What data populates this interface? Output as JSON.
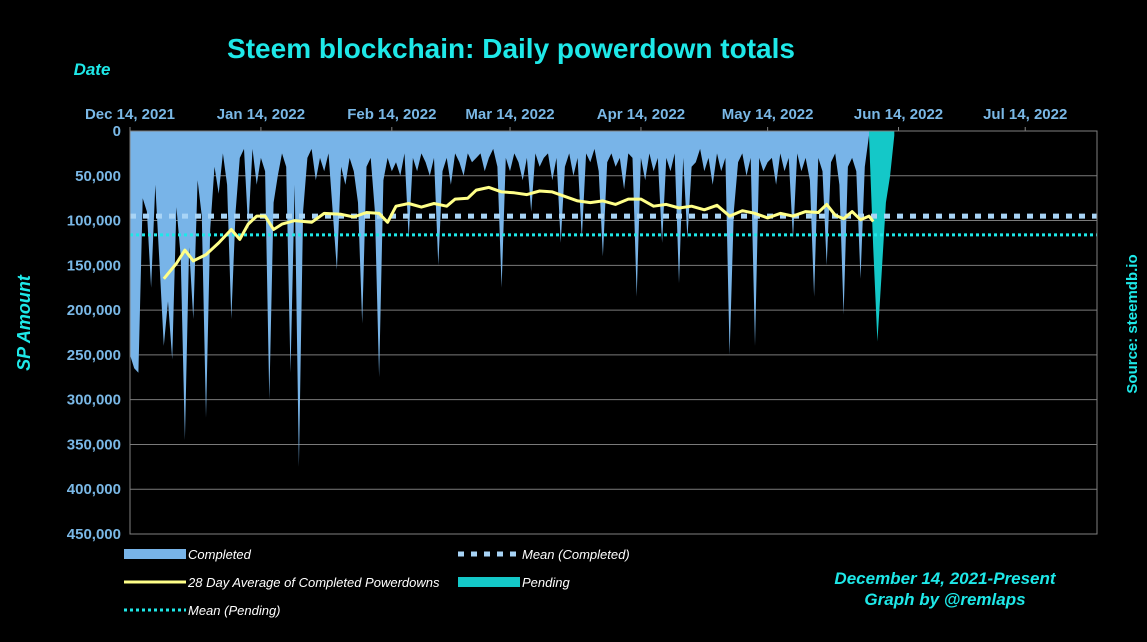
{
  "chart_data": {
    "type": "area",
    "title": "Steem blockchain: Daily powerdown totals",
    "xlabel": "Date",
    "ylabel": "SP Amount",
    "source": "Source: steemdb.io",
    "footer_line1": "December 14, 2021-Present",
    "footer_line2": "Graph by @remlaps",
    "y_axis": {
      "inverted": true,
      "ylim": [
        0,
        450000
      ],
      "ticks": [
        0,
        50000,
        100000,
        150000,
        200000,
        250000,
        300000,
        350000,
        400000,
        450000
      ],
      "tick_labels": [
        "0",
        "50,000",
        "100,000",
        "150,000",
        "200,000",
        "250,000",
        "300,000",
        "350,000",
        "400,000",
        "450,000"
      ]
    },
    "x_axis": {
      "start": "2021-12-14",
      "end": "2022-07-31",
      "position": "top",
      "ticks": [
        "2021-12-14",
        "2022-01-14",
        "2022-02-14",
        "2022-03-14",
        "2022-04-14",
        "2022-05-14",
        "2022-06-14",
        "2022-07-14"
      ],
      "tick_labels": [
        "Dec 14, 2021",
        "Jan 14, 2022",
        "Feb 14, 2022",
        "Mar 14, 2022",
        "Apr 14, 2022",
        "May 14, 2022",
        "Jun 14, 2022",
        "Jul 14, 2022"
      ]
    },
    "legend": {
      "placement": "bottom",
      "entries": [
        {
          "label": "Completed",
          "style": "area",
          "color": "#78b4e8"
        },
        {
          "label": "Mean (Completed)",
          "style": "dash",
          "color": "#a8d4f6"
        },
        {
          "label": "28 Day Average of Completed Powerdowns",
          "style": "line",
          "color": "#ffff88"
        },
        {
          "label": "Pending",
          "style": "area",
          "color": "#14c8c8"
        },
        {
          "label": "Mean (Pending)",
          "style": "dot",
          "color": "#1ee8e8"
        }
      ]
    },
    "grid": true,
    "colors": {
      "background": "#000000",
      "completed": "#78b4e8",
      "pending": "#14c8c8",
      "average": "#ffff88",
      "mean_completed": "#a8d4f6",
      "mean_pending": "#1ee8e8",
      "title": "#1ee8e8",
      "ticks": "#7ab8e6"
    },
    "series": [
      {
        "name": "Completed",
        "type": "area",
        "points": [
          [
            "2021-12-14",
            250000
          ],
          [
            "2021-12-15",
            265000
          ],
          [
            "2021-12-16",
            270000
          ],
          [
            "2021-12-17",
            75000
          ],
          [
            "2021-12-18",
            90000
          ],
          [
            "2021-12-19",
            175000
          ],
          [
            "2021-12-20",
            60000
          ],
          [
            "2021-12-21",
            150000
          ],
          [
            "2021-12-22",
            240000
          ],
          [
            "2021-12-23",
            190000
          ],
          [
            "2021-12-24",
            255000
          ],
          [
            "2021-12-25",
            85000
          ],
          [
            "2021-12-26",
            140000
          ],
          [
            "2021-12-27",
            345000
          ],
          [
            "2021-12-28",
            130000
          ],
          [
            "2021-12-29",
            210000
          ],
          [
            "2021-12-30",
            55000
          ],
          [
            "2021-12-31",
            95000
          ],
          [
            "2022-01-01",
            320000
          ],
          [
            "2022-01-02",
            110000
          ],
          [
            "2022-01-03",
            40000
          ],
          [
            "2022-01-04",
            70000
          ],
          [
            "2022-01-05",
            25000
          ],
          [
            "2022-01-06",
            60000
          ],
          [
            "2022-01-07",
            210000
          ],
          [
            "2022-01-08",
            90000
          ],
          [
            "2022-01-09",
            30000
          ],
          [
            "2022-01-10",
            20000
          ],
          [
            "2022-01-11",
            110000
          ],
          [
            "2022-01-12",
            20000
          ],
          [
            "2022-01-13",
            60000
          ],
          [
            "2022-01-14",
            30000
          ],
          [
            "2022-01-15",
            45000
          ],
          [
            "2022-01-16",
            300000
          ],
          [
            "2022-01-17",
            80000
          ],
          [
            "2022-01-18",
            50000
          ],
          [
            "2022-01-19",
            25000
          ],
          [
            "2022-01-20",
            40000
          ],
          [
            "2022-01-21",
            270000
          ],
          [
            "2022-01-22",
            60000
          ],
          [
            "2022-01-23",
            375000
          ],
          [
            "2022-01-24",
            90000
          ],
          [
            "2022-01-25",
            30000
          ],
          [
            "2022-01-26",
            20000
          ],
          [
            "2022-01-27",
            55000
          ],
          [
            "2022-01-28",
            30000
          ],
          [
            "2022-01-29",
            45000
          ],
          [
            "2022-01-30",
            25000
          ],
          [
            "2022-01-31",
            90000
          ],
          [
            "2022-02-01",
            155000
          ],
          [
            "2022-02-02",
            40000
          ],
          [
            "2022-02-03",
            60000
          ],
          [
            "2022-02-04",
            30000
          ],
          [
            "2022-02-05",
            45000
          ],
          [
            "2022-02-06",
            80000
          ],
          [
            "2022-02-07",
            215000
          ],
          [
            "2022-02-08",
            40000
          ],
          [
            "2022-02-09",
            30000
          ],
          [
            "2022-02-10",
            90000
          ],
          [
            "2022-02-11",
            275000
          ],
          [
            "2022-02-12",
            55000
          ],
          [
            "2022-02-13",
            30000
          ],
          [
            "2022-02-14",
            45000
          ],
          [
            "2022-02-15",
            35000
          ],
          [
            "2022-02-16",
            50000
          ],
          [
            "2022-02-17",
            25000
          ],
          [
            "2022-02-18",
            120000
          ],
          [
            "2022-02-19",
            30000
          ],
          [
            "2022-02-20",
            45000
          ],
          [
            "2022-02-21",
            25000
          ],
          [
            "2022-02-22",
            35000
          ],
          [
            "2022-02-23",
            50000
          ],
          [
            "2022-02-24",
            30000
          ],
          [
            "2022-02-25",
            150000
          ],
          [
            "2022-02-26",
            45000
          ],
          [
            "2022-02-27",
            30000
          ],
          [
            "2022-02-28",
            60000
          ],
          [
            "2022-03-01",
            25000
          ],
          [
            "2022-03-02",
            35000
          ],
          [
            "2022-03-03",
            50000
          ],
          [
            "2022-03-04",
            25000
          ],
          [
            "2022-03-05",
            35000
          ],
          [
            "2022-03-06",
            30000
          ],
          [
            "2022-03-07",
            25000
          ],
          [
            "2022-03-08",
            45000
          ],
          [
            "2022-03-09",
            30000
          ],
          [
            "2022-03-10",
            20000
          ],
          [
            "2022-03-11",
            40000
          ],
          [
            "2022-03-12",
            175000
          ],
          [
            "2022-03-13",
            30000
          ],
          [
            "2022-03-14",
            45000
          ],
          [
            "2022-03-15",
            25000
          ],
          [
            "2022-03-16",
            35000
          ],
          [
            "2022-03-17",
            55000
          ],
          [
            "2022-03-18",
            30000
          ],
          [
            "2022-03-19",
            90000
          ],
          [
            "2022-03-20",
            25000
          ],
          [
            "2022-03-21",
            40000
          ],
          [
            "2022-03-22",
            30000
          ],
          [
            "2022-03-23",
            25000
          ],
          [
            "2022-03-24",
            55000
          ],
          [
            "2022-03-25",
            30000
          ],
          [
            "2022-03-26",
            125000
          ],
          [
            "2022-03-27",
            40000
          ],
          [
            "2022-03-28",
            25000
          ],
          [
            "2022-03-29",
            50000
          ],
          [
            "2022-03-30",
            30000
          ],
          [
            "2022-03-31",
            120000
          ],
          [
            "2022-04-01",
            25000
          ],
          [
            "2022-04-02",
            35000
          ],
          [
            "2022-04-03",
            20000
          ],
          [
            "2022-04-04",
            45000
          ],
          [
            "2022-04-05",
            140000
          ],
          [
            "2022-04-06",
            35000
          ],
          [
            "2022-04-07",
            25000
          ],
          [
            "2022-04-08",
            40000
          ],
          [
            "2022-04-09",
            30000
          ],
          [
            "2022-04-10",
            65000
          ],
          [
            "2022-04-11",
            25000
          ],
          [
            "2022-04-12",
            30000
          ],
          [
            "2022-04-13",
            185000
          ],
          [
            "2022-04-14",
            30000
          ],
          [
            "2022-04-15",
            55000
          ],
          [
            "2022-04-16",
            25000
          ],
          [
            "2022-04-17",
            45000
          ],
          [
            "2022-04-18",
            30000
          ],
          [
            "2022-04-19",
            125000
          ],
          [
            "2022-04-20",
            30000
          ],
          [
            "2022-04-21",
            45000
          ],
          [
            "2022-04-22",
            25000
          ],
          [
            "2022-04-23",
            170000
          ],
          [
            "2022-04-24",
            30000
          ],
          [
            "2022-04-25",
            120000
          ],
          [
            "2022-04-26",
            40000
          ],
          [
            "2022-04-27",
            35000
          ],
          [
            "2022-04-28",
            20000
          ],
          [
            "2022-04-29",
            45000
          ],
          [
            "2022-04-30",
            30000
          ],
          [
            "2022-05-01",
            60000
          ],
          [
            "2022-05-02",
            25000
          ],
          [
            "2022-05-03",
            45000
          ],
          [
            "2022-05-04",
            30000
          ],
          [
            "2022-05-05",
            250000
          ],
          [
            "2022-05-06",
            90000
          ],
          [
            "2022-05-07",
            35000
          ],
          [
            "2022-05-08",
            25000
          ],
          [
            "2022-05-09",
            50000
          ],
          [
            "2022-05-10",
            30000
          ],
          [
            "2022-05-11",
            240000
          ],
          [
            "2022-05-12",
            30000
          ],
          [
            "2022-05-13",
            45000
          ],
          [
            "2022-05-14",
            35000
          ],
          [
            "2022-05-15",
            30000
          ],
          [
            "2022-05-16",
            60000
          ],
          [
            "2022-05-17",
            25000
          ],
          [
            "2022-05-18",
            45000
          ],
          [
            "2022-05-19",
            30000
          ],
          [
            "2022-05-20",
            120000
          ],
          [
            "2022-05-21",
            25000
          ],
          [
            "2022-05-22",
            45000
          ],
          [
            "2022-05-23",
            30000
          ],
          [
            "2022-05-24",
            55000
          ],
          [
            "2022-05-25",
            185000
          ],
          [
            "2022-05-26",
            30000
          ],
          [
            "2022-05-27",
            45000
          ],
          [
            "2022-05-28",
            150000
          ],
          [
            "2022-05-29",
            35000
          ],
          [
            "2022-05-30",
            25000
          ],
          [
            "2022-05-31",
            60000
          ],
          [
            "2022-06-01",
            205000
          ],
          [
            "2022-06-02",
            40000
          ],
          [
            "2022-06-03",
            30000
          ],
          [
            "2022-06-04",
            45000
          ],
          [
            "2022-06-05",
            165000
          ],
          [
            "2022-06-06",
            40000
          ],
          [
            "2022-06-07",
            5000
          ]
        ]
      },
      {
        "name": "Pending",
        "type": "area",
        "points": [
          [
            "2022-06-07",
            5000
          ],
          [
            "2022-06-08",
            130000
          ],
          [
            "2022-06-09",
            235000
          ],
          [
            "2022-06-10",
            160000
          ],
          [
            "2022-06-11",
            80000
          ],
          [
            "2022-06-12",
            50000
          ],
          [
            "2022-06-13",
            5000
          ]
        ]
      },
      {
        "name": "28 Day Average of Completed Powerdowns",
        "type": "line",
        "points": [
          [
            "2021-12-22",
            165000
          ],
          [
            "2021-12-25",
            148000
          ],
          [
            "2021-12-27",
            133000
          ],
          [
            "2021-12-29",
            145000
          ],
          [
            "2022-01-01",
            138000
          ],
          [
            "2022-01-04",
            125000
          ],
          [
            "2022-01-07",
            110000
          ],
          [
            "2022-01-09",
            121000
          ],
          [
            "2022-01-11",
            104000
          ],
          [
            "2022-01-13",
            95000
          ],
          [
            "2022-01-15",
            95000
          ],
          [
            "2022-01-17",
            110000
          ],
          [
            "2022-01-19",
            104000
          ],
          [
            "2022-01-22",
            100000
          ],
          [
            "2022-01-26",
            102000
          ],
          [
            "2022-01-29",
            92000
          ],
          [
            "2022-02-02",
            93000
          ],
          [
            "2022-02-05",
            96000
          ],
          [
            "2022-02-08",
            91000
          ],
          [
            "2022-02-11",
            92000
          ],
          [
            "2022-02-13",
            102000
          ],
          [
            "2022-02-15",
            84000
          ],
          [
            "2022-02-18",
            81000
          ],
          [
            "2022-02-21",
            85000
          ],
          [
            "2022-02-24",
            81000
          ],
          [
            "2022-02-27",
            84000
          ],
          [
            "2022-03-01",
            76000
          ],
          [
            "2022-03-04",
            75000
          ],
          [
            "2022-03-06",
            66000
          ],
          [
            "2022-03-09",
            63000
          ],
          [
            "2022-03-12",
            68000
          ],
          [
            "2022-03-15",
            69000
          ],
          [
            "2022-03-18",
            71000
          ],
          [
            "2022-03-21",
            67000
          ],
          [
            "2022-03-24",
            68000
          ],
          [
            "2022-03-27",
            73000
          ],
          [
            "2022-03-30",
            78000
          ],
          [
            "2022-04-02",
            80000
          ],
          [
            "2022-04-05",
            78000
          ],
          [
            "2022-04-08",
            82000
          ],
          [
            "2022-04-11",
            76000
          ],
          [
            "2022-04-14",
            76000
          ],
          [
            "2022-04-17",
            84000
          ],
          [
            "2022-04-20",
            82000
          ],
          [
            "2022-04-23",
            86000
          ],
          [
            "2022-04-26",
            84000
          ],
          [
            "2022-04-29",
            88000
          ],
          [
            "2022-05-02",
            83000
          ],
          [
            "2022-05-05",
            95000
          ],
          [
            "2022-05-08",
            89000
          ],
          [
            "2022-05-11",
            92000
          ],
          [
            "2022-05-14",
            97000
          ],
          [
            "2022-05-17",
            92000
          ],
          [
            "2022-05-20",
            95000
          ],
          [
            "2022-05-23",
            90000
          ],
          [
            "2022-05-26",
            91000
          ],
          [
            "2022-05-28",
            82000
          ],
          [
            "2022-05-30",
            94000
          ],
          [
            "2022-06-01",
            98000
          ],
          [
            "2022-06-03",
            90000
          ],
          [
            "2022-06-05",
            99000
          ],
          [
            "2022-06-07",
            95000
          ],
          [
            "2022-06-08",
            101000
          ]
        ]
      },
      {
        "name": "Mean (Completed)",
        "type": "hline",
        "value": 95000
      },
      {
        "name": "Mean (Pending)",
        "type": "hline",
        "value": 116000
      }
    ]
  }
}
